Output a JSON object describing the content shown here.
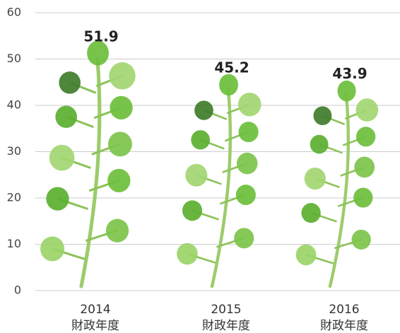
{
  "chart_data": {
    "type": "pictograph",
    "categories": [
      "2014",
      "2015",
      "2016"
    ],
    "category_sublabel": "財政年度",
    "values": [
      51.9,
      45.2,
      43.9
    ],
    "ylim": [
      0,
      60
    ],
    "yticks": [
      0,
      10,
      20,
      30,
      40,
      50,
      60
    ],
    "grid": true,
    "color": "#6cbf3c"
  }
}
